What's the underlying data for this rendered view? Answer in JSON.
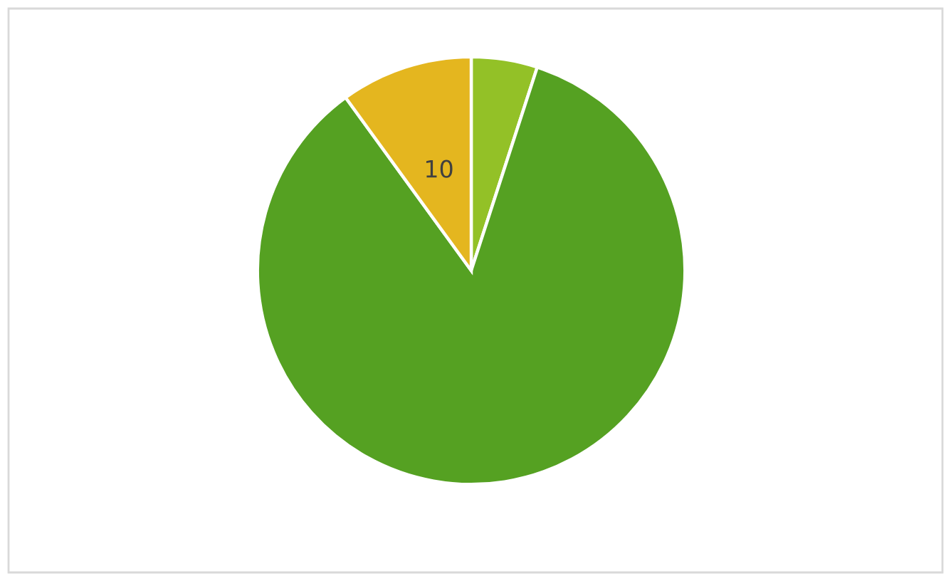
{
  "chart_data": {
    "type": "pie",
    "categories": [
      null,
      null,
      null
    ],
    "values": [
      5,
      85,
      10
    ],
    "colors": [
      "#93c127",
      "#55a122",
      "#e4b61f"
    ],
    "value_labels": [
      null,
      null,
      "10"
    ]
  }
}
